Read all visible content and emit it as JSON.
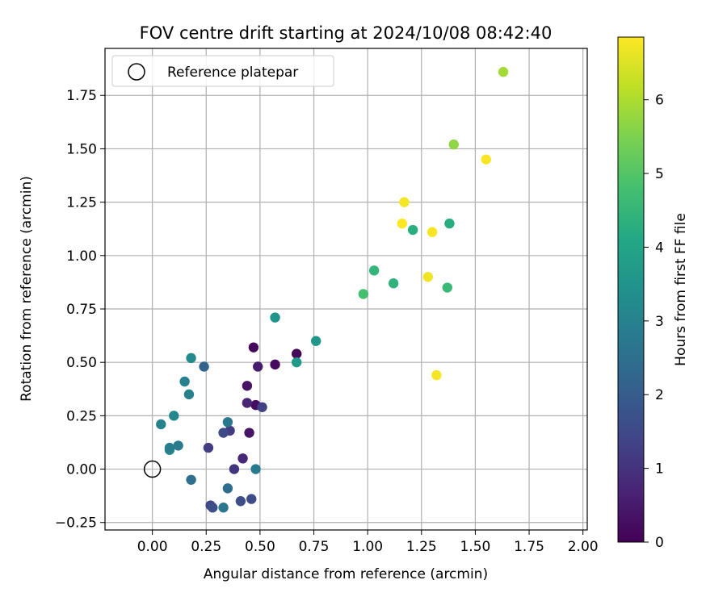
{
  "chart_data": {
    "type": "scatter",
    "title": "FOV centre drift starting at 2024/10/08 08:42:40",
    "xlabel": "Angular distance from reference (arcmin)",
    "ylabel": "Rotation from reference (arcmin)",
    "xlim": [
      -0.22,
      2.02
    ],
    "ylim": [
      -0.285,
      1.97
    ],
    "xticks": [
      0.0,
      0.25,
      0.5,
      0.75,
      1.0,
      1.25,
      1.5,
      1.75,
      2.0
    ],
    "xtick_labels": [
      "0.00",
      "0.25",
      "0.50",
      "0.75",
      "1.00",
      "1.25",
      "1.50",
      "1.75",
      "2.00"
    ],
    "yticks": [
      -0.25,
      0.0,
      0.25,
      0.5,
      0.75,
      1.0,
      1.25,
      1.5,
      1.75
    ],
    "ytick_labels": [
      "−0.25",
      "0.00",
      "0.25",
      "0.50",
      "0.75",
      "1.00",
      "1.25",
      "1.50",
      "1.75"
    ],
    "grid": true,
    "legend": {
      "position": "upper-left",
      "entries": [
        "Reference platepar"
      ]
    },
    "reference_point": {
      "x": 0.0,
      "y": 0.0,
      "marker": "open-circle"
    },
    "colorbar": {
      "label": "Hours from first FF file",
      "colormap": "viridis",
      "range": [
        0,
        6.85
      ],
      "ticks": [
        0,
        1,
        2,
        3,
        4,
        5,
        6
      ],
      "tick_labels": [
        "0",
        "1",
        "2",
        "3",
        "4",
        "5",
        "6"
      ]
    },
    "points": [
      {
        "x": 0.47,
        "y": 0.57,
        "hours": 0.15
      },
      {
        "x": 0.67,
        "y": 0.54,
        "hours": 0.1
      },
      {
        "x": 0.57,
        "y": 0.49,
        "hours": 0.2
      },
      {
        "x": 0.49,
        "y": 0.48,
        "hours": 0.55
      },
      {
        "x": 0.44,
        "y": 0.39,
        "hours": 0.35
      },
      {
        "x": 0.48,
        "y": 0.3,
        "hours": 0.25
      },
      {
        "x": 0.44,
        "y": 0.31,
        "hours": 0.7
      },
      {
        "x": 0.51,
        "y": 0.29,
        "hours": 1.3
      },
      {
        "x": 0.45,
        "y": 0.17,
        "hours": 0.4
      },
      {
        "x": 0.42,
        "y": 0.05,
        "hours": 0.75
      },
      {
        "x": 0.38,
        "y": 0.0,
        "hours": 1.05
      },
      {
        "x": 0.36,
        "y": 0.18,
        "hours": 1.2
      },
      {
        "x": 0.33,
        "y": 0.17,
        "hours": 1.5
      },
      {
        "x": 0.26,
        "y": 0.1,
        "hours": 1.25
      },
      {
        "x": 0.46,
        "y": -0.14,
        "hours": 1.55
      },
      {
        "x": 0.41,
        "y": -0.15,
        "hours": 1.6
      },
      {
        "x": 0.27,
        "y": -0.17,
        "hours": 1.45
      },
      {
        "x": 0.28,
        "y": -0.18,
        "hours": 1.65
      },
      {
        "x": 0.33,
        "y": -0.18,
        "hours": 2.7
      },
      {
        "x": 0.35,
        "y": -0.09,
        "hours": 2.45
      },
      {
        "x": 0.18,
        "y": -0.05,
        "hours": 2.5
      },
      {
        "x": 0.08,
        "y": 0.09,
        "hours": 3.1
      },
      {
        "x": 0.08,
        "y": 0.1,
        "hours": 2.9
      },
      {
        "x": 0.12,
        "y": 0.11,
        "hours": 2.85
      },
      {
        "x": 0.04,
        "y": 0.21,
        "hours": 3.05
      },
      {
        "x": 0.1,
        "y": 0.25,
        "hours": 3.15
      },
      {
        "x": 0.15,
        "y": 0.41,
        "hours": 2.95
      },
      {
        "x": 0.17,
        "y": 0.35,
        "hours": 3.0
      },
      {
        "x": 0.18,
        "y": 0.52,
        "hours": 3.25
      },
      {
        "x": 0.24,
        "y": 0.48,
        "hours": 2.2
      },
      {
        "x": 0.35,
        "y": 0.22,
        "hours": 2.75
      },
      {
        "x": 0.48,
        "y": 0.0,
        "hours": 2.8
      },
      {
        "x": 0.57,
        "y": 0.71,
        "hours": 3.5
      },
      {
        "x": 0.67,
        "y": 0.5,
        "hours": 3.7
      },
      {
        "x": 0.76,
        "y": 0.6,
        "hours": 3.6
      },
      {
        "x": 0.98,
        "y": 0.82,
        "hours": 4.8
      },
      {
        "x": 1.03,
        "y": 0.93,
        "hours": 4.5
      },
      {
        "x": 1.12,
        "y": 0.87,
        "hours": 4.4
      },
      {
        "x": 1.21,
        "y": 1.12,
        "hours": 4.3
      },
      {
        "x": 1.38,
        "y": 1.15,
        "hours": 4.25
      },
      {
        "x": 1.37,
        "y": 0.85,
        "hours": 4.6
      },
      {
        "x": 1.4,
        "y": 1.52,
        "hours": 5.7
      },
      {
        "x": 1.63,
        "y": 1.86,
        "hours": 5.9
      },
      {
        "x": 1.55,
        "y": 1.45,
        "hours": 6.8
      },
      {
        "x": 1.17,
        "y": 1.25,
        "hours": 6.75
      },
      {
        "x": 1.16,
        "y": 1.15,
        "hours": 6.85
      },
      {
        "x": 1.3,
        "y": 1.11,
        "hours": 6.8
      },
      {
        "x": 1.28,
        "y": 0.9,
        "hours": 6.7
      },
      {
        "x": 1.32,
        "y": 0.44,
        "hours": 6.75
      }
    ]
  }
}
